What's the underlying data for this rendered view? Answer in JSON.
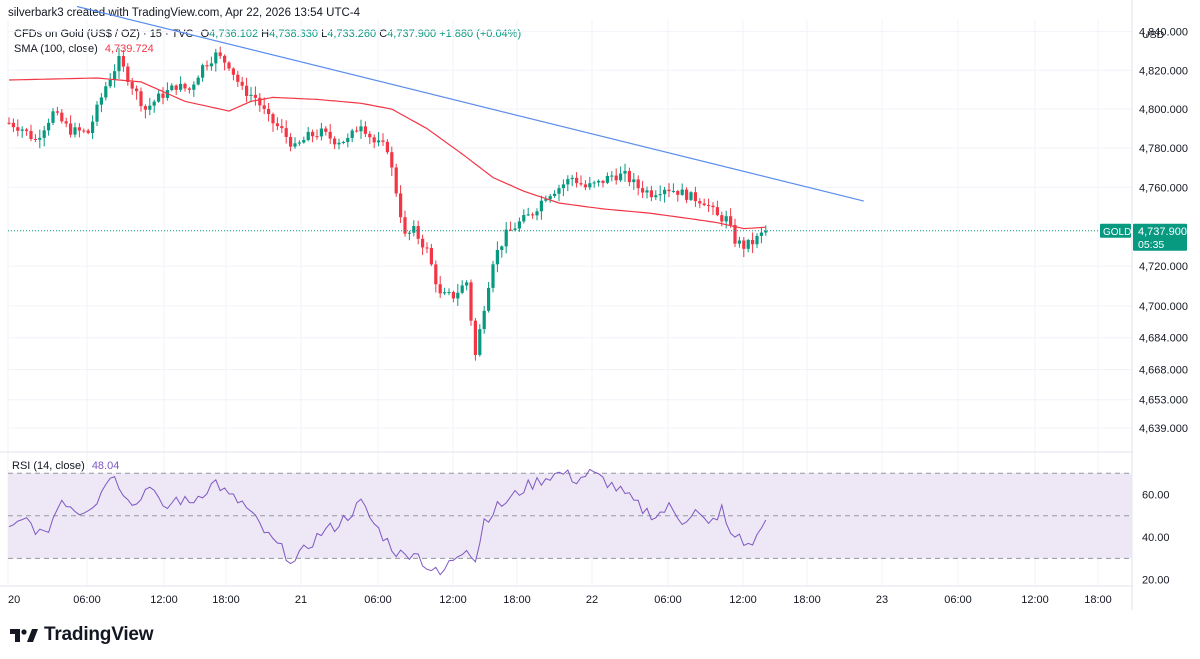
{
  "header": {
    "caption": "silverbark3 created with TradingView.com, Apr 22, 2026 13:54 UTC-4"
  },
  "instrument": {
    "name": "CFDs on Gold (US$ / OZ) · 15 · TVC",
    "open_label": "O",
    "open": "4,736.102",
    "high_label": "H",
    "high": "4,738.330",
    "low_label": "L",
    "low": "4,733.260",
    "close_label": "C",
    "close": "4,737.900",
    "change": "+1.880 (+0.04%)"
  },
  "sma": {
    "label": "SMA (100, close)",
    "value": "4,739.724"
  },
  "rsi": {
    "label": "RSI (14, close)",
    "value": "48.04"
  },
  "currency": "USD",
  "price_tag": {
    "symbol": "GOLD",
    "price": "4,737.900",
    "countdown": "05:35"
  },
  "colors": {
    "up": "#089981",
    "down": "#f23645",
    "sma": "#f23645",
    "trendline": "#5b8def",
    "rsi": "#7e57c2",
    "rsi_band": "#ede7f6",
    "tag_bg": "#089981",
    "grid": "#f0f3fa"
  },
  "chart_data": {
    "type": "candlestick",
    "price_axis": {
      "ticks": [
        "4,840.000",
        "4,820.000",
        "4,800.000",
        "4,780.000",
        "4,760.000",
        "4,720.000",
        "4,700.000",
        "4,684.000",
        "4,668.000",
        "4,653.000",
        "4,639.000"
      ],
      "tick_values": [
        4840,
        4820,
        4800,
        4780,
        4760,
        4720,
        4700,
        4684,
        4668,
        4653,
        4639
      ],
      "scale": "log"
    },
    "rsi_axis": {
      "ticks": [
        "60.00",
        "40.00",
        "20.00"
      ],
      "tick_values": [
        60,
        40,
        20
      ],
      "bands": [
        70,
        50,
        30
      ]
    },
    "time_axis": [
      "20",
      "06:00",
      "12:00",
      "18:00",
      "21",
      "06:00",
      "12:00",
      "18:00",
      "22",
      "06:00",
      "12:00",
      "18:00",
      "23",
      "06:00",
      "12:00",
      "18:00"
    ],
    "price_anchors": [
      [
        0,
        4793
      ],
      [
        3,
        4790
      ],
      [
        6,
        4784
      ],
      [
        10,
        4798
      ],
      [
        14,
        4789
      ],
      [
        18,
        4788
      ],
      [
        22,
        4812
      ],
      [
        25,
        4825
      ],
      [
        28,
        4812
      ],
      [
        31,
        4800
      ],
      [
        34,
        4806
      ],
      [
        38,
        4812
      ],
      [
        41,
        4810
      ],
      [
        44,
        4822
      ],
      [
        47,
        4828
      ],
      [
        50,
        4823
      ],
      [
        53,
        4810
      ],
      [
        56,
        4806
      ],
      [
        59,
        4795
      ],
      [
        62,
        4789
      ],
      [
        65,
        4780
      ],
      [
        68,
        4786
      ],
      [
        71,
        4788
      ],
      [
        74,
        4784
      ],
      [
        77,
        4784
      ],
      [
        80,
        4793
      ],
      [
        83,
        4783
      ],
      [
        86,
        4780
      ],
      [
        88,
        4758
      ],
      [
        90,
        4735
      ],
      [
        92,
        4738
      ],
      [
        95,
        4728
      ],
      [
        98,
        4705
      ],
      [
        101,
        4705
      ],
      [
        104,
        4712
      ],
      [
        106,
        4675
      ],
      [
        108,
        4700
      ],
      [
        110,
        4723
      ],
      [
        113,
        4736
      ],
      [
        116,
        4742
      ],
      [
        119,
        4747
      ],
      [
        122,
        4756
      ],
      [
        125,
        4760
      ],
      [
        128,
        4765
      ],
      [
        131,
        4760
      ],
      [
        134,
        4762
      ],
      [
        137,
        4766
      ],
      [
        140,
        4766
      ],
      [
        143,
        4760
      ],
      [
        146,
        4757
      ],
      [
        149,
        4760
      ],
      [
        152,
        4758
      ],
      [
        155,
        4755
      ],
      [
        158,
        4753
      ],
      [
        161,
        4745
      ],
      [
        163,
        4744
      ],
      [
        165,
        4733
      ],
      [
        167,
        4730
      ],
      [
        169,
        4732
      ],
      [
        172,
        4738
      ]
    ],
    "sma_anchors": [
      [
        0,
        4815
      ],
      [
        20,
        4816
      ],
      [
        30,
        4814
      ],
      [
        40,
        4804
      ],
      [
        50,
        4799
      ],
      [
        55,
        4804
      ],
      [
        60,
        4806
      ],
      [
        70,
        4805
      ],
      [
        80,
        4803
      ],
      [
        87,
        4800
      ],
      [
        95,
        4790
      ],
      [
        103,
        4777
      ],
      [
        110,
        4765
      ],
      [
        117,
        4758
      ],
      [
        125,
        4752
      ],
      [
        135,
        4749
      ],
      [
        145,
        4747
      ],
      [
        155,
        4744
      ],
      [
        161,
        4742
      ],
      [
        167,
        4739
      ],
      [
        172,
        4739.7
      ]
    ],
    "rsi_anchors": [
      [
        0,
        43
      ],
      [
        4,
        48
      ],
      [
        8,
        40
      ],
      [
        12,
        58
      ],
      [
        16,
        52
      ],
      [
        20,
        57
      ],
      [
        23,
        70
      ],
      [
        26,
        62
      ],
      [
        29,
        55
      ],
      [
        32,
        66
      ],
      [
        35,
        52
      ],
      [
        38,
        58
      ],
      [
        41,
        56
      ],
      [
        44,
        61
      ],
      [
        47,
        66
      ],
      [
        50,
        59
      ],
      [
        53,
        56
      ],
      [
        56,
        48
      ],
      [
        59,
        40
      ],
      [
        62,
        34
      ],
      [
        65,
        28
      ],
      [
        68,
        36
      ],
      [
        71,
        42
      ],
      [
        74,
        45
      ],
      [
        77,
        50
      ],
      [
        80,
        56
      ],
      [
        83,
        46
      ],
      [
        86,
        38
      ],
      [
        88,
        33
      ],
      [
        90,
        31
      ],
      [
        92,
        34
      ],
      [
        95,
        26
      ],
      [
        98,
        22
      ],
      [
        101,
        30
      ],
      [
        104,
        36
      ],
      [
        106,
        29
      ],
      [
        108,
        48
      ],
      [
        111,
        54
      ],
      [
        114,
        58
      ],
      [
        117,
        63
      ],
      [
        120,
        66
      ],
      [
        123,
        69
      ],
      [
        126,
        70
      ],
      [
        129,
        67
      ],
      [
        132,
        70
      ],
      [
        135,
        67
      ],
      [
        138,
        63
      ],
      [
        141,
        58
      ],
      [
        144,
        53
      ],
      [
        147,
        50
      ],
      [
        150,
        54
      ],
      [
        153,
        48
      ],
      [
        156,
        52
      ],
      [
        159,
        45
      ],
      [
        162,
        53
      ],
      [
        164,
        40
      ],
      [
        166,
        41
      ],
      [
        168,
        35
      ],
      [
        170,
        40
      ],
      [
        172,
        48.04
      ]
    ],
    "trendline": {
      "start": [
        0,
        4853
      ],
      "end": [
        192,
        4753
      ]
    },
    "last_price": 4737.9
  }
}
